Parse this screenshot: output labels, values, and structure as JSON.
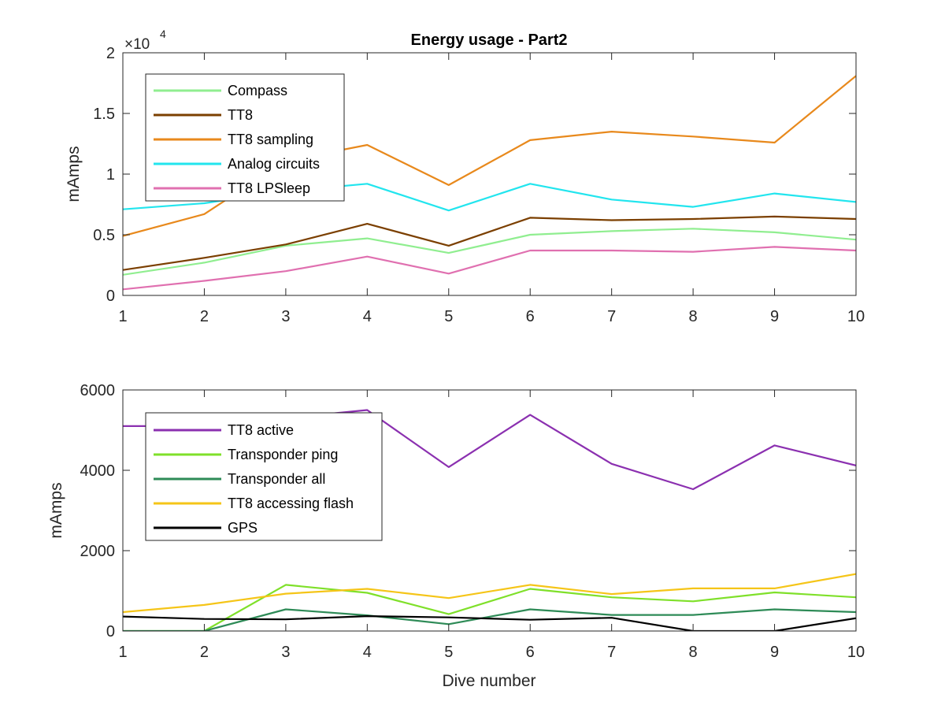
{
  "chart_data": [
    {
      "type": "line",
      "title": "Energy usage - Part2",
      "xlabel": "",
      "ylabel": "mAmps",
      "exponent_label": "×10",
      "exponent_power": "4",
      "xlim": [
        1,
        10
      ],
      "ylim": [
        0,
        20000
      ],
      "x": [
        1,
        2,
        3,
        4,
        5,
        6,
        7,
        8,
        9,
        10
      ],
      "x_ticks": [
        "1",
        "2",
        "3",
        "4",
        "5",
        "6",
        "7",
        "8",
        "9",
        "10"
      ],
      "y_ticks": [
        {
          "value": 0,
          "label": "0"
        },
        {
          "value": 5000,
          "label": "0.5"
        },
        {
          "value": 10000,
          "label": "1"
        },
        {
          "value": 15000,
          "label": "1.5"
        },
        {
          "value": 20000,
          "label": "2"
        }
      ],
      "grid": false,
      "legend_position": "top-left",
      "series": [
        {
          "name": "Compass",
          "color": "#90ee90",
          "values": [
            1700,
            2700,
            4100,
            4700,
            3500,
            5000,
            5300,
            5500,
            5200,
            4600
          ]
        },
        {
          "name": "TT8",
          "color": "#7b3f00",
          "values": [
            2100,
            3100,
            4200,
            5900,
            4100,
            6400,
            6200,
            6300,
            6500,
            6300
          ]
        },
        {
          "name": "TT8 sampling",
          "color": "#e8891c",
          "values": [
            4900,
            6700,
            11100,
            12400,
            9100,
            12800,
            13500,
            13100,
            12600,
            18100
          ]
        },
        {
          "name": "Analog circuits",
          "color": "#22e5ee",
          "values": [
            7100,
            7600,
            8600,
            9200,
            7000,
            9200,
            7900,
            7300,
            8400,
            7700
          ]
        },
        {
          "name": "TT8 LPSleep",
          "color": "#e070b0",
          "values": [
            500,
            1200,
            2000,
            3200,
            1800,
            3700,
            3700,
            3600,
            4000,
            3700
          ]
        }
      ]
    },
    {
      "type": "line",
      "title": "",
      "xlabel": "Dive number",
      "ylabel": "mAmps",
      "xlim": [
        1,
        10
      ],
      "ylim": [
        0,
        6000
      ],
      "x": [
        1,
        2,
        3,
        4,
        5,
        6,
        7,
        8,
        9,
        10
      ],
      "x_ticks": [
        "1",
        "2",
        "3",
        "4",
        "5",
        "6",
        "7",
        "8",
        "9",
        "10"
      ],
      "y_ticks": [
        {
          "value": 0,
          "label": "0"
        },
        {
          "value": 2000,
          "label": "2000"
        },
        {
          "value": 4000,
          "label": "4000"
        },
        {
          "value": 6000,
          "label": "6000"
        }
      ],
      "grid": false,
      "legend_position": "top-left",
      "series": [
        {
          "name": "TT8 active",
          "color": "#8b30b0",
          "values": [
            5100,
            5100,
            5300,
            5500,
            4080,
            5380,
            4160,
            3530,
            4620,
            4120
          ]
        },
        {
          "name": "Transponder ping",
          "color": "#7fe02a",
          "values": [
            0,
            0,
            1150,
            950,
            420,
            1050,
            840,
            740,
            960,
            840
          ]
        },
        {
          "name": "Transponder all",
          "color": "#2e8b57",
          "values": [
            0,
            0,
            540,
            390,
            170,
            540,
            400,
            400,
            540,
            470
          ]
        },
        {
          "name": "TT8 accessing flash",
          "color": "#f5c518",
          "values": [
            470,
            650,
            930,
            1050,
            820,
            1150,
            920,
            1060,
            1060,
            1420
          ]
        },
        {
          "name": "GPS",
          "color": "#000000",
          "values": [
            360,
            300,
            290,
            370,
            340,
            280,
            330,
            0,
            0,
            320
          ]
        }
      ]
    }
  ]
}
